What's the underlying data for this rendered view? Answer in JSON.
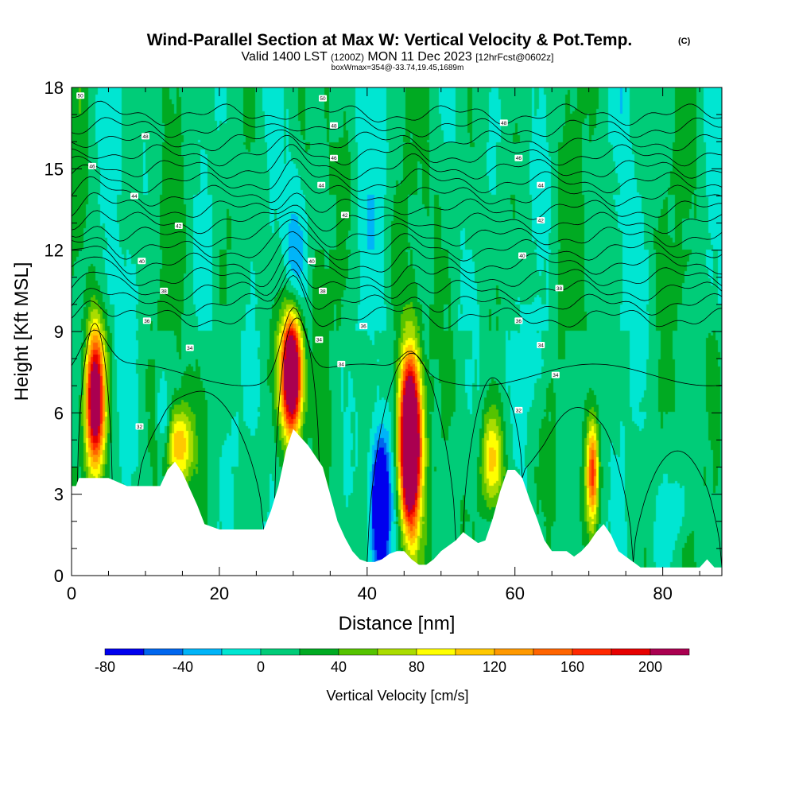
{
  "title": "Wind-Parallel Section at Max W: Vertical Velocity & Pot.Temp.",
  "title_mark": "(C)",
  "subtitle_valid": "Valid 1400 LST",
  "subtitle_z": "(1200Z)",
  "subtitle_date": "MON 11 Dec 2023",
  "subtitle_fcst": "[12hrFcst@0602z]",
  "subtitle2": "boxWmax=354@-33.74,19.45,1689m",
  "colorbar": {
    "label": "Vertical Velocity [cm/s]",
    "tick_labels": [
      "-80",
      "-40",
      "0",
      "40",
      "80",
      "120",
      "160",
      "200"
    ],
    "tick_values": [
      -80,
      -40,
      0,
      40,
      80,
      120,
      160,
      200
    ],
    "levels": [
      -80,
      -60,
      -40,
      -20,
      0,
      20,
      40,
      60,
      80,
      100,
      120,
      140,
      160,
      180,
      200,
      220
    ],
    "colors": [
      "#0000ee",
      "#0066ee",
      "#00b4f8",
      "#00e6d2",
      "#00cc78",
      "#00aa22",
      "#55c300",
      "#aadc00",
      "#ffff00",
      "#ffc800",
      "#ff9900",
      "#ff6400",
      "#ff2800",
      "#e60000",
      "#aa0050"
    ]
  },
  "chart_data": {
    "type": "heatmap",
    "xlabel": "Distance [nm]",
    "ylabel": "Height [Kft MSL]",
    "xlim": [
      0,
      88
    ],
    "ylim": [
      0,
      18
    ],
    "x_ticks": [
      "0",
      "20",
      "40",
      "60",
      "80"
    ],
    "x_tick_values": [
      0,
      20,
      40,
      60,
      80
    ],
    "y_ticks": [
      "0",
      "3",
      "6",
      "9",
      "12",
      "15",
      "18"
    ],
    "y_tick_values": [
      0,
      3,
      6,
      9,
      12,
      15,
      18
    ],
    "terrain": {
      "x": [
        0,
        0.6,
        1,
        3,
        5,
        7.5,
        10,
        12,
        13,
        14,
        15,
        16,
        17,
        18,
        20,
        22,
        24,
        26,
        27,
        28,
        29,
        30,
        31,
        32,
        33,
        34,
        35,
        36,
        37,
        38,
        39,
        40,
        41,
        42,
        43,
        44,
        45,
        46,
        47,
        48,
        49,
        50,
        52,
        53,
        54,
        55,
        56,
        57,
        58,
        59,
        60,
        61,
        62,
        63,
        64,
        65,
        66,
        67,
        68,
        69,
        70,
        71,
        72,
        73,
        74,
        75,
        76,
        77,
        78,
        79,
        80,
        82,
        84,
        85,
        86,
        87,
        88
      ],
      "y": [
        3.3,
        3.3,
        3.6,
        3.6,
        3.6,
        3.3,
        3.3,
        3.3,
        3.9,
        4.2,
        3.8,
        3.2,
        2.6,
        1.9,
        1.7,
        1.7,
        1.7,
        1.7,
        2.4,
        3.3,
        4.6,
        5.4,
        5.1,
        4.8,
        4.4,
        4.0,
        3.0,
        2.0,
        1.4,
        0.9,
        0.6,
        0.5,
        0.5,
        0.6,
        0.8,
        0.9,
        0.9,
        0.6,
        0.4,
        0.4,
        0.6,
        0.9,
        1.3,
        1.6,
        1.4,
        1.2,
        1.3,
        2.1,
        3.1,
        3.9,
        3.9,
        3.6,
        2.8,
        2.1,
        1.3,
        0.9,
        0.9,
        0.9,
        0.7,
        0.9,
        1.2,
        1.6,
        1.9,
        1.5,
        0.9,
        0.7,
        0.5,
        0.3,
        0.3,
        0.3,
        0.3,
        0.3,
        0.3,
        0.3,
        0.6,
        0.3,
        0.3
      ]
    },
    "w_cells": [
      {
        "x": 3.2,
        "z": 6.5,
        "sx": 0.9,
        "sz": 1.8,
        "w": 250
      },
      {
        "x": 14.5,
        "z": 4.8,
        "sx": 1.2,
        "sz": 1.0,
        "w": 115
      },
      {
        "x": 29.8,
        "z": 7.5,
        "sx": 1.0,
        "sz": 1.6,
        "w": 310
      },
      {
        "x": 45.8,
        "z": 4.9,
        "sx": 1.0,
        "sz": 2.2,
        "w": 354
      },
      {
        "x": 57.0,
        "z": 4.2,
        "sx": 1.1,
        "sz": 1.3,
        "w": 100
      },
      {
        "x": 70.5,
        "z": 3.8,
        "sx": 0.55,
        "sz": 1.3,
        "w": 150
      },
      {
        "x": 41.8,
        "z": 2.6,
        "sx": 0.8,
        "sz": 1.6,
        "w": -170
      },
      {
        "x": 12.5,
        "z": 5.8,
        "sx": 0.7,
        "sz": 1.0,
        "w": -40
      },
      {
        "x": 30.5,
        "z": 11.5,
        "sx": 1.1,
        "sz": 2.5,
        "w": -45
      },
      {
        "x": 63.0,
        "z": 8.0,
        "sx": 1.0,
        "sz": 1.2,
        "w": -28
      },
      {
        "x": 81.5,
        "z": 2.5,
        "sx": 1.5,
        "sz": 1.0,
        "w": -28
      }
    ],
    "theta_levels": [
      34,
      35,
      36,
      37,
      38,
      39,
      40,
      41,
      42,
      43,
      44,
      45,
      46,
      47,
      48,
      49,
      50
    ],
    "theta_labels": [
      {
        "x": 1.2,
        "y": 17.7,
        "text": "50"
      },
      {
        "x": 10,
        "y": 16.2,
        "text": "48"
      },
      {
        "x": 2.8,
        "y": 15.1,
        "text": "46"
      },
      {
        "x": 8.5,
        "y": 14.0,
        "text": "44"
      },
      {
        "x": 14.5,
        "y": 12.9,
        "text": "42"
      },
      {
        "x": 9.5,
        "y": 11.6,
        "text": "40"
      },
      {
        "x": 12.5,
        "y": 10.5,
        "text": "38"
      },
      {
        "x": 10.2,
        "y": 9.4,
        "text": "36"
      },
      {
        "x": 16,
        "y": 8.4,
        "text": "34"
      },
      {
        "x": 9.2,
        "y": 5.5,
        "text": "32"
      },
      {
        "x": 34,
        "y": 17.6,
        "text": "50"
      },
      {
        "x": 35.5,
        "y": 16.6,
        "text": "48"
      },
      {
        "x": 35.5,
        "y": 15.4,
        "text": "46"
      },
      {
        "x": 33.8,
        "y": 14.4,
        "text": "44"
      },
      {
        "x": 37,
        "y": 13.3,
        "text": "42"
      },
      {
        "x": 32.5,
        "y": 11.6,
        "text": "40"
      },
      {
        "x": 34,
        "y": 10.5,
        "text": "38"
      },
      {
        "x": 39.5,
        "y": 9.2,
        "text": "36"
      },
      {
        "x": 33.5,
        "y": 8.7,
        "text": "34"
      },
      {
        "x": 36.5,
        "y": 7.8,
        "text": "34"
      },
      {
        "x": 58.5,
        "y": 16.7,
        "text": "48"
      },
      {
        "x": 60.5,
        "y": 15.4,
        "text": "46"
      },
      {
        "x": 63.5,
        "y": 14.4,
        "text": "44"
      },
      {
        "x": 63.5,
        "y": 13.1,
        "text": "42"
      },
      {
        "x": 61,
        "y": 11.8,
        "text": "40"
      },
      {
        "x": 66,
        "y": 10.6,
        "text": "38"
      },
      {
        "x": 60.5,
        "y": 9.4,
        "text": "36"
      },
      {
        "x": 63.5,
        "y": 8.5,
        "text": "34"
      },
      {
        "x": 65.5,
        "y": 7.4,
        "text": "34"
      },
      {
        "x": 60.5,
        "y": 6.1,
        "text": "32"
      }
    ]
  }
}
